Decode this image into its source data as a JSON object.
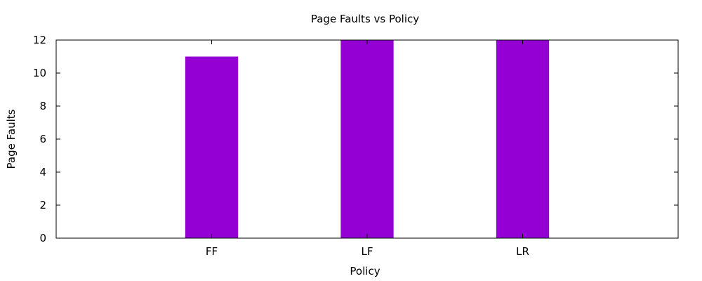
{
  "chart_data": {
    "type": "bar",
    "title": "Page Faults vs Policy",
    "xlabel": "Policy",
    "ylabel": "Page Faults",
    "categories": [
      "FF",
      "LF",
      "LR"
    ],
    "values": [
      11,
      12,
      12
    ],
    "ylim": [
      0,
      12
    ],
    "yticks": [
      "0",
      "2",
      "4",
      "6",
      "8",
      "10",
      "12"
    ],
    "bar_color": "#9400d3",
    "grid": false,
    "legend": "none"
  }
}
